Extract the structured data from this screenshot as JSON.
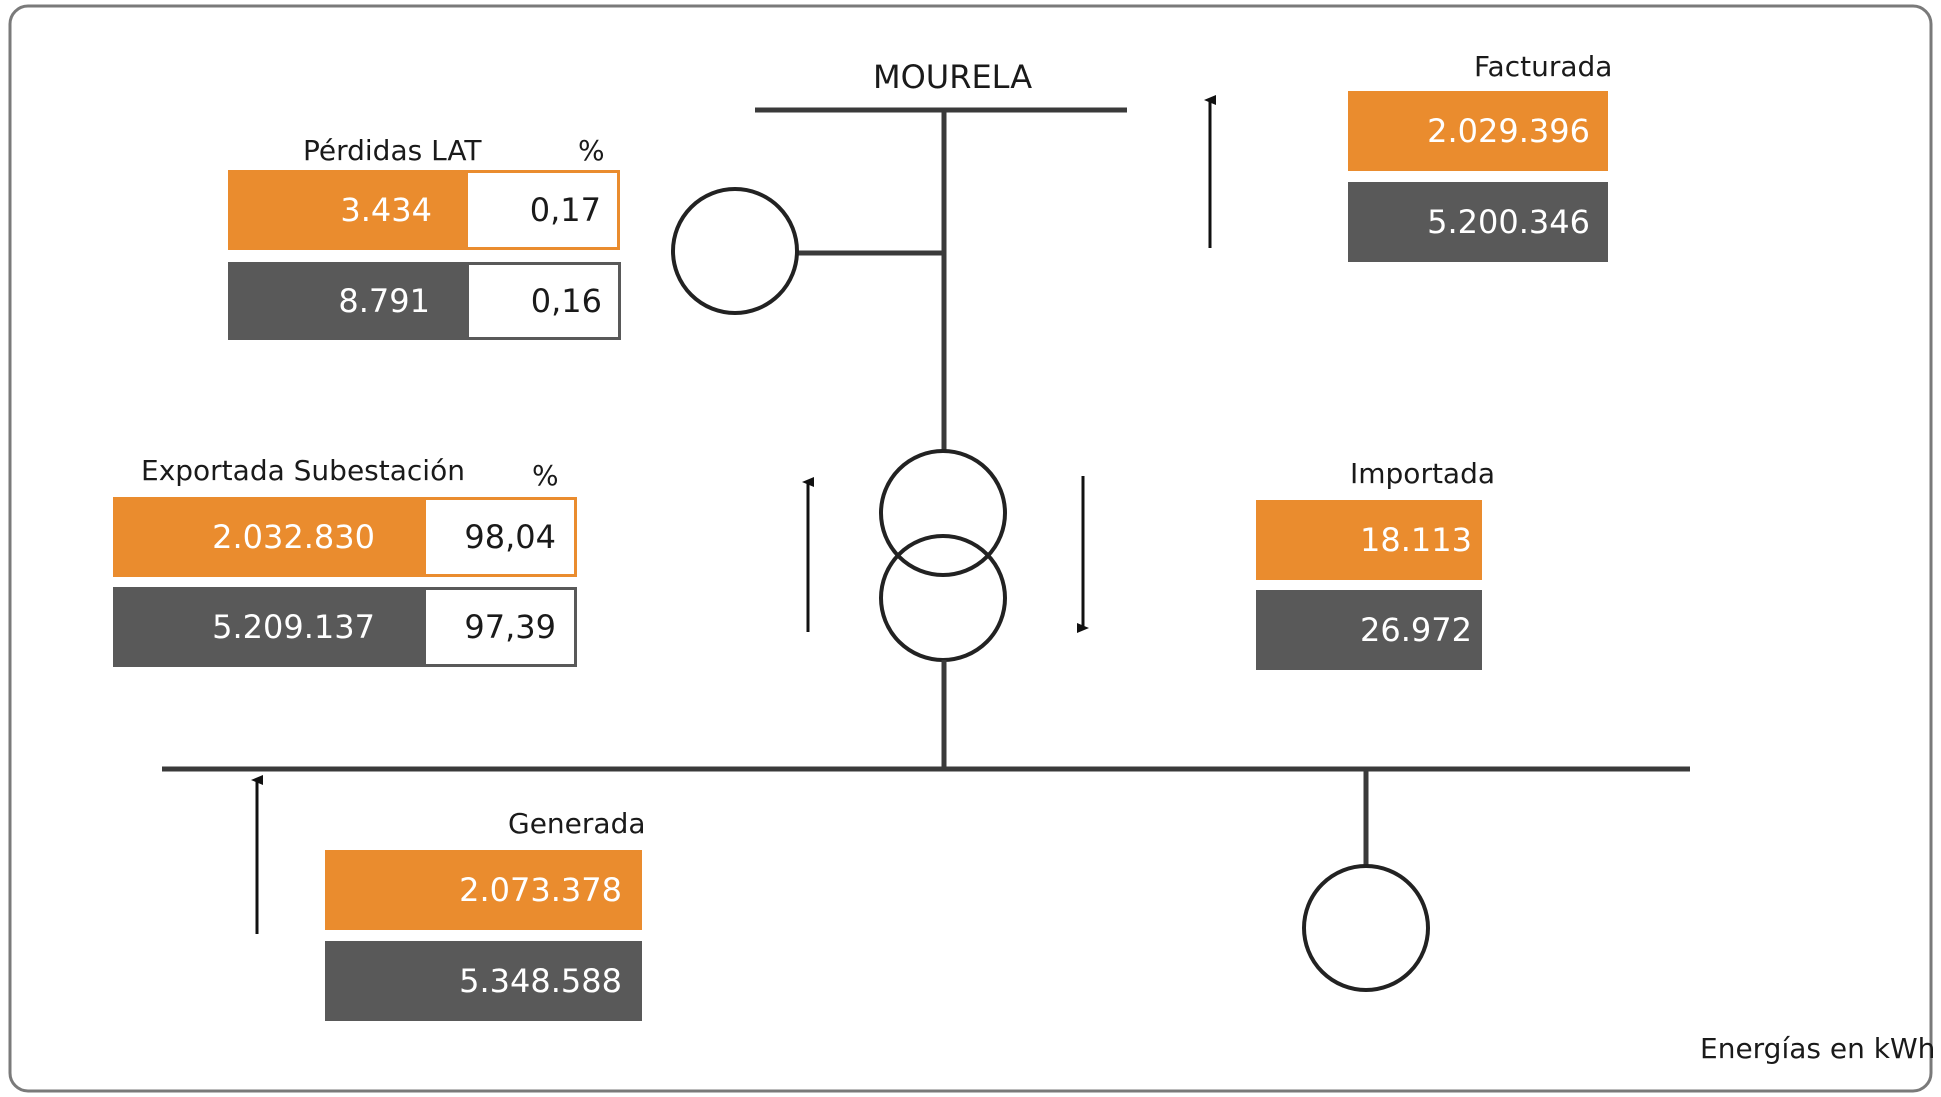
{
  "bus_name": "MOURELA",
  "units_note": "Energías en kWh",
  "colors": {
    "orange": "#ea8c2e",
    "gray": "#595959",
    "line": "#3a3a3a"
  },
  "perdidas_lat": {
    "label": "Pérdidas LAT",
    "pct_label": "%",
    "orange_value": "3.434",
    "orange_pct": "0,17",
    "gray_value": "8.791",
    "gray_pct": "0,16"
  },
  "exportada": {
    "label": "Exportada Subestación",
    "pct_label": "%",
    "orange_value": "2.032.830",
    "orange_pct": "98,04",
    "gray_value": "5.209.137",
    "gray_pct": "97,39"
  },
  "facturada": {
    "label": "Facturada",
    "orange_value": "2.029.396",
    "gray_value": "5.200.346"
  },
  "importada": {
    "label": "Importada",
    "orange_value": "18.113",
    "gray_value": "26.972"
  },
  "generada": {
    "label": "Generada",
    "orange_value": "2.073.378",
    "gray_value": "5.348.588"
  }
}
